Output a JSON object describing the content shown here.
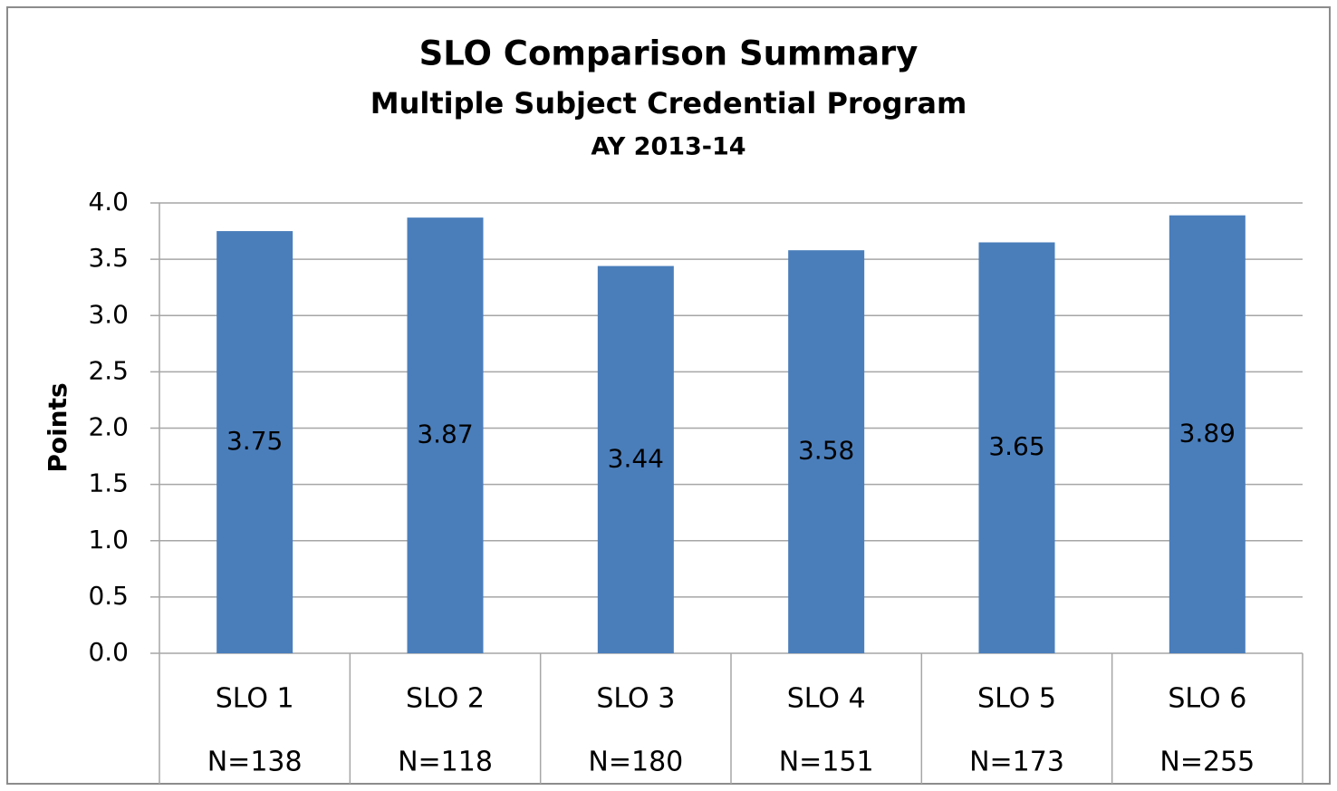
{
  "chart_data": {
    "type": "bar",
    "title": "SLO Comparison Summary",
    "subtitle": "Multiple Subject Credential Program",
    "subtitle_2": "AY 2013-14",
    "y_label": "Points",
    "categories": [
      "SLO 1",
      "SLO 2",
      "SLO 3",
      "SLO 4",
      "SLO 5",
      "SLO 6"
    ],
    "category_sublabels": [
      "N=138",
      "N=118",
      "N=180",
      "N=151",
      "N=173",
      "N=255"
    ],
    "values": [
      3.75,
      3.87,
      3.44,
      3.58,
      3.65,
      3.89
    ],
    "color": "#4a7ebb",
    "ylim": [
      0,
      4
    ],
    "yticks": [
      {
        "value": 0,
        "label": "0.0"
      },
      0.5,
      {
        "value": 1,
        "label": "1.0"
      },
      1.5,
      {
        "value": 2,
        "label": "2.0"
      },
      2.5,
      {
        "value": 3,
        "label": "3.0"
      },
      3.5,
      {
        "value": 4,
        "label": "4.0"
      }
    ],
    "grid": true
  }
}
